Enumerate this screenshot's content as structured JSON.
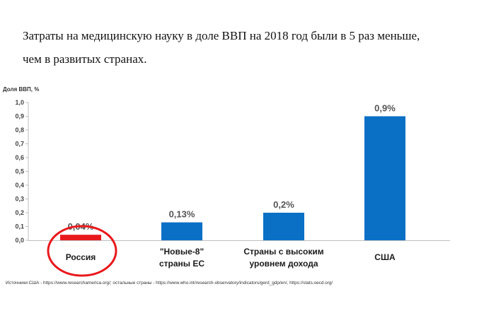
{
  "intro": {
    "line1": "Затраты на медицинскую науку в доле ВВП на 2018 год были в 5 раз меньше,",
    "line2": "чем в развитых странах."
  },
  "chart_data": {
    "type": "bar",
    "ylabel": "Доля ВВП, %",
    "ylim": [
      0,
      1.0
    ],
    "yticks": [
      "0,0",
      "0,1",
      "0,2",
      "0,3",
      "0,4",
      "0,5",
      "0,6",
      "0,7",
      "0,8",
      "0,9",
      "1,0"
    ],
    "categories": [
      [
        "Россия"
      ],
      [
        "\"Новые-8\"",
        "страны ЕС"
      ],
      [
        "Страны с высоким",
        "уровнем дохода"
      ],
      [
        "США"
      ]
    ],
    "values": [
      0.04,
      0.13,
      0.2,
      0.9
    ],
    "value_labels": [
      "0,04%",
      "0,13%",
      "0,2%",
      "0,9%"
    ],
    "bar_colors": [
      "#e8191c",
      "#0a70c6",
      "#0a70c6",
      "#0a70c6"
    ],
    "highlight_color": "#e8191c",
    "grid": false
  },
  "sources": "Источники:США - https://www.researchamerica.org/; остальные страны - https://www.who.int/research-observatory/indicators/gerd_gdp/en/, https://stats.oecd.org/"
}
